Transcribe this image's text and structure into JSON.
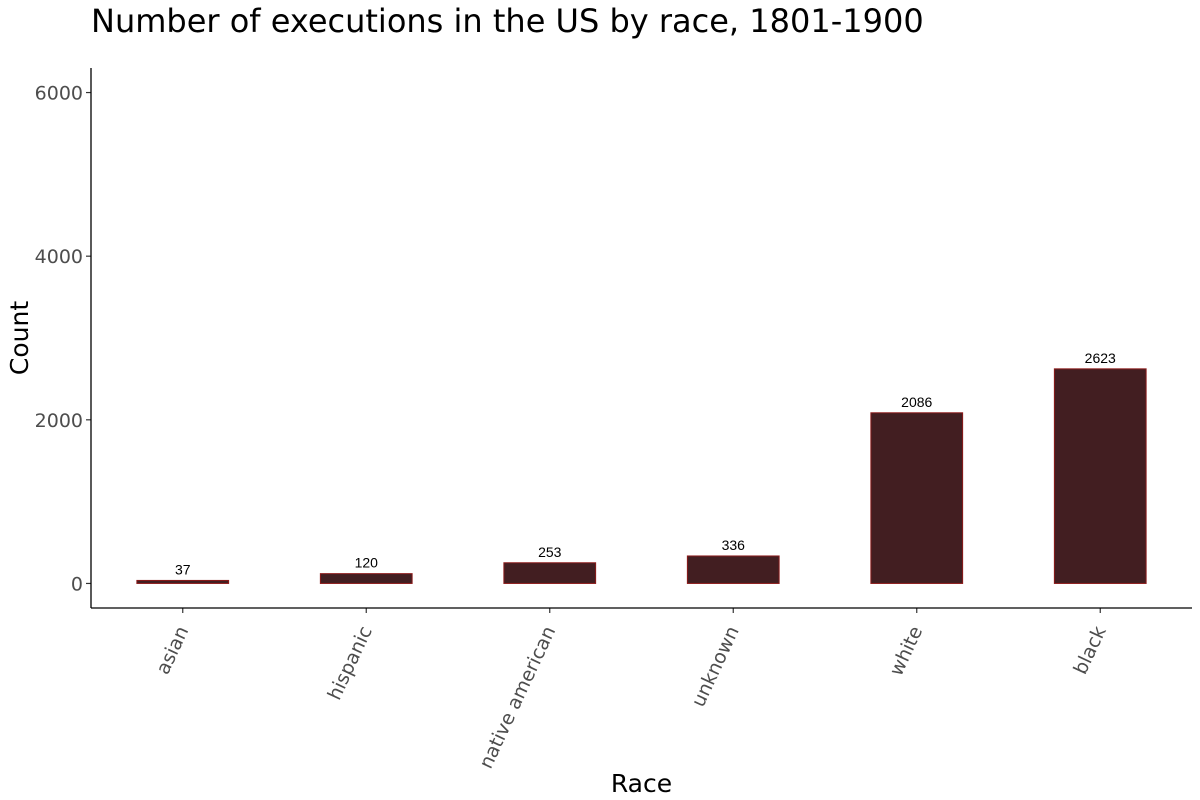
{
  "chart_data": {
    "type": "bar",
    "title": "Number of executions in the US by race, 1801-1900",
    "xlabel": "Race",
    "ylabel": "Count",
    "categories": [
      "asian",
      "hispanic",
      "native american",
      "unknown",
      "white",
      "black"
    ],
    "values": [
      37,
      120,
      253,
      336,
      2086,
      2623
    ],
    "data_labels": [
      "37",
      "120",
      "253",
      "336",
      "2086",
      "2623"
    ],
    "yticks": [
      0,
      2000,
      4000,
      6000
    ],
    "ytick_labels": [
      "0",
      "2000",
      "4000",
      "6000"
    ],
    "ylim": [
      -300,
      6300
    ],
    "grid": false,
    "bar_color": "#421e21",
    "bar_border_color": "#8b1a1a"
  }
}
